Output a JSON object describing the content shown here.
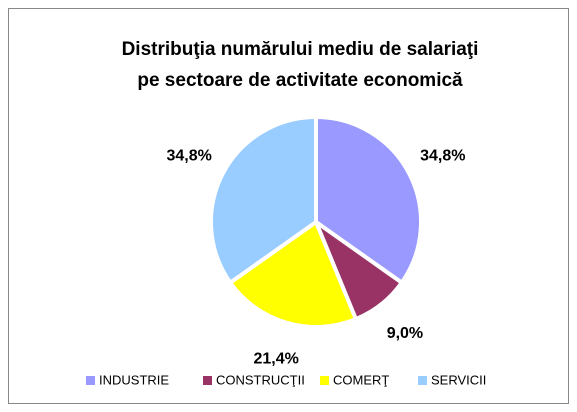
{
  "chart_data": {
    "type": "pie",
    "title": [
      "Distribuţia numărului mediu de salariaţi",
      "pe sectoare de activitate economică"
    ],
    "categories": [
      "INDUSTRIE",
      "CONSTRUCŢII",
      "COMERŢ",
      "SERVICII"
    ],
    "values": [
      34.8,
      9.0,
      21.4,
      34.8
    ],
    "value_labels": [
      "34,8%",
      "9,0%",
      "21,4%",
      "34,8%"
    ],
    "colors": [
      "#9999ff",
      "#993366",
      "#ffff00",
      "#99ccff"
    ],
    "legend": "bottom"
  }
}
